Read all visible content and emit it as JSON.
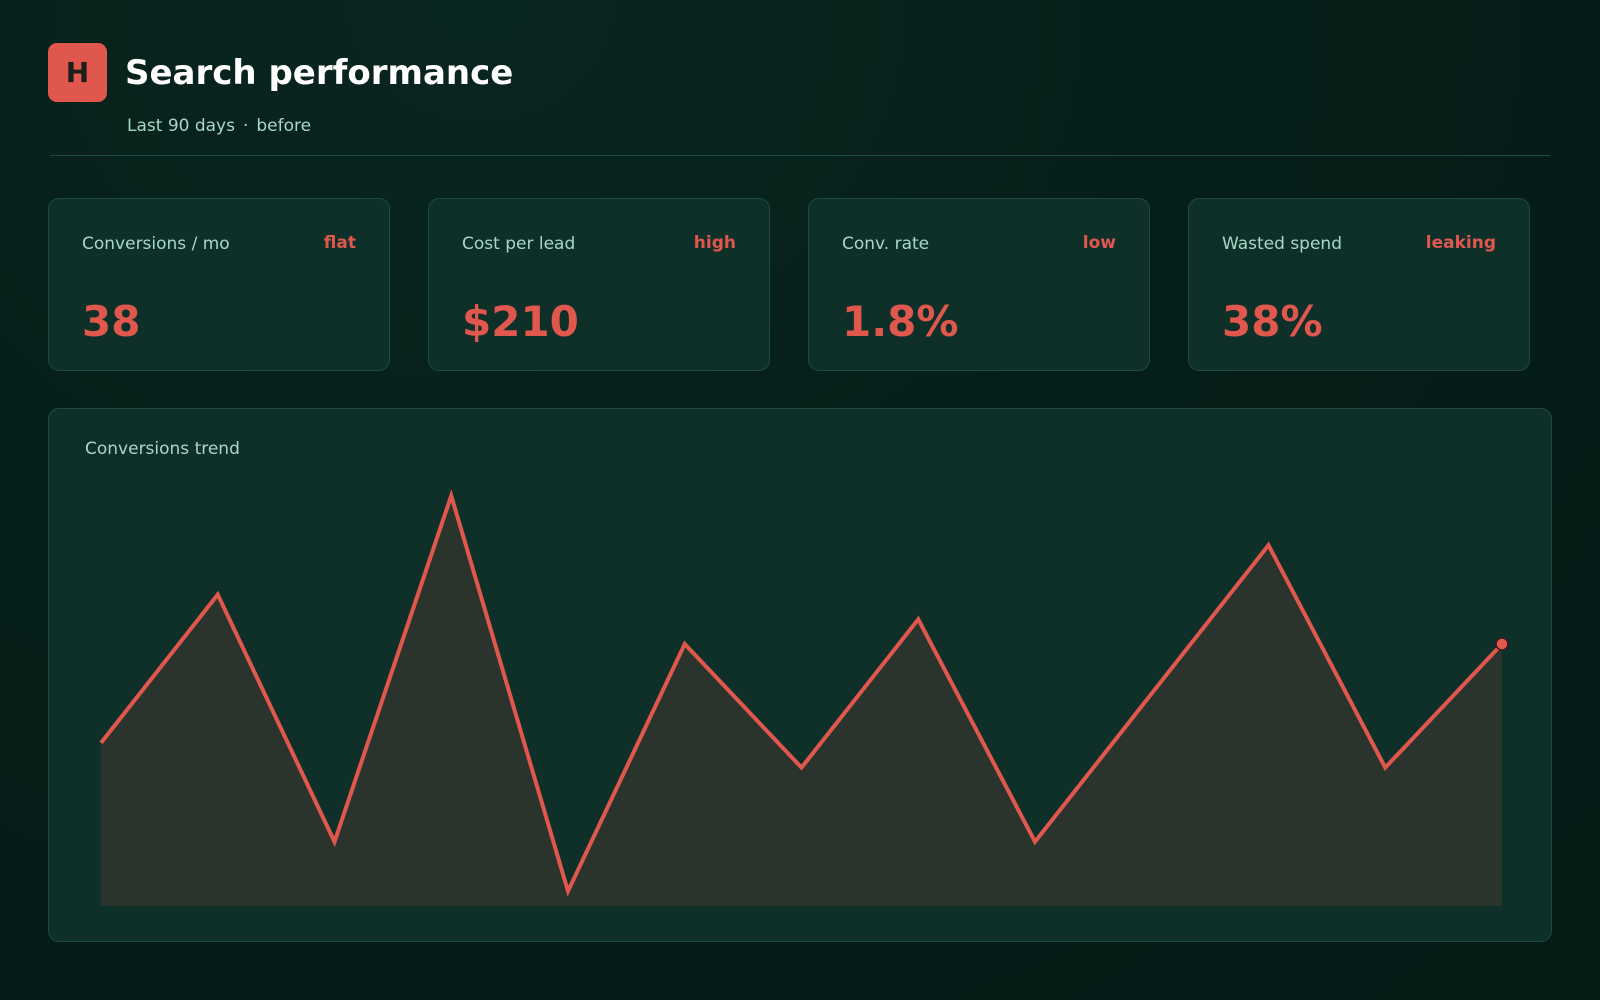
{
  "header": {
    "logo_letter": "H",
    "title": "Search performance",
    "subtitle_range": "Last 90 days",
    "subtitle_separator": "·",
    "subtitle_state": "before"
  },
  "kpis": [
    {
      "label": "Conversions / mo",
      "status": "flat",
      "value": "38"
    },
    {
      "label": "Cost per lead",
      "status": "high",
      "value": "$210"
    },
    {
      "label": "Conv. rate",
      "status": "low",
      "value": "1.8%"
    },
    {
      "label": "Wasted spend",
      "status": "leaking",
      "value": "38%"
    }
  ],
  "colors": {
    "accent": "#e0574e",
    "background": "#061e19",
    "card": "#0f3029",
    "muted_text": "#a9d7c7"
  },
  "chart_data": {
    "type": "area",
    "title": "Conversions trend",
    "x": [
      1,
      2,
      3,
      4,
      5,
      6,
      7,
      8,
      9,
      10,
      11,
      12,
      13
    ],
    "series": [
      {
        "values": [
          33,
          63,
          13,
          83,
          3,
          53,
          28,
          58,
          13,
          43,
          73,
          28,
          53
        ]
      }
    ],
    "ylim": [
      0,
      88
    ],
    "grid": false,
    "legend": "none"
  }
}
